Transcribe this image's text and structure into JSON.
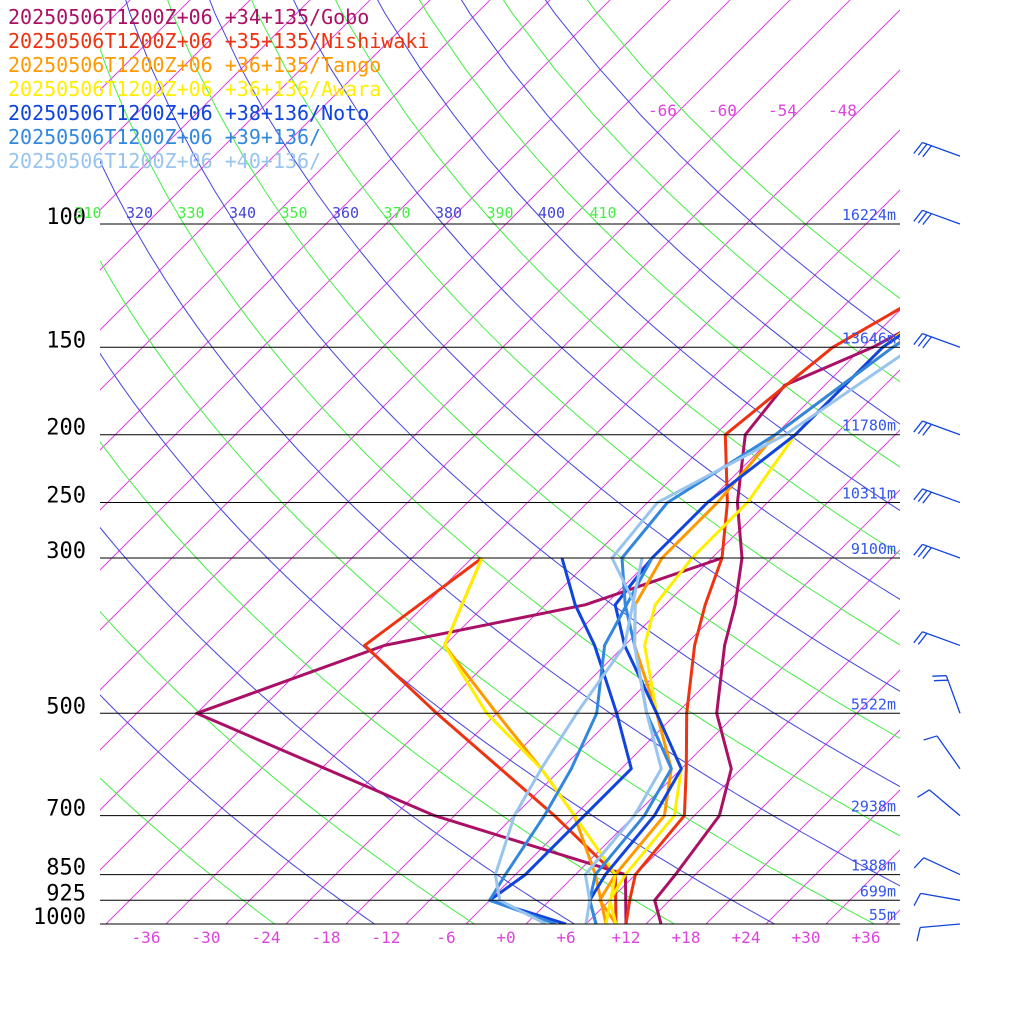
{
  "chart_data": {
    "type": "line",
    "title": "",
    "xlabel": "",
    "ylabel": "",
    "xlim": [
      -40,
      40
    ],
    "pressure_range": [
      100,
      1000
    ],
    "pressure_labels": [
      "100",
      "150",
      "200",
      "250",
      "300",
      "500",
      "700",
      "850",
      "925",
      "1000"
    ],
    "pressure_values": [
      100,
      150,
      200,
      250,
      300,
      500,
      700,
      850,
      925,
      1000
    ],
    "temperature_ticks": [
      "-36",
      "-30",
      "-24",
      "-18",
      "-12",
      "-6",
      "+0",
      "+6",
      "+12",
      "+18",
      "+24",
      "+30",
      "+36"
    ],
    "temperature_tick_values": [
      -36,
      -30,
      -24,
      -18,
      -12,
      -6,
      0,
      6,
      12,
      18,
      24,
      30,
      36
    ],
    "theta_labels": [
      "310",
      "320",
      "330",
      "340",
      "350",
      "360",
      "370",
      "380",
      "390",
      "400",
      "410"
    ],
    "mixing_ratio_labels": [
      "-66",
      "-60",
      "-54",
      "-48"
    ],
    "height_labels": [
      {
        "p": 100,
        "text": "16224m"
      },
      {
        "p": 150,
        "text": "13646m"
      },
      {
        "p": 200,
        "text": "11780m"
      },
      {
        "p": 250,
        "text": "10311m"
      },
      {
        "p": 300,
        "text": "9100m"
      },
      {
        "p": 500,
        "text": "5522m"
      },
      {
        "p": 700,
        "text": "2938m"
      },
      {
        "p": 850,
        "text": "1388m"
      },
      {
        "p": 925,
        "text": "699m"
      },
      {
        "p": 1000,
        "text": "55m"
      }
    ],
    "series": [
      {
        "name": "20250506T1200Z+06 +34+135/Gobo",
        "color": "#aa1166",
        "temperature": [
          [
            1000,
            15.5
          ],
          [
            925,
            12.5
          ],
          [
            850,
            12
          ],
          [
            700,
            10.5
          ],
          [
            600,
            7
          ],
          [
            500,
            0
          ],
          [
            400,
            -6
          ],
          [
            350,
            -9
          ],
          [
            300,
            -13
          ],
          [
            250,
            -19
          ],
          [
            200,
            -25
          ],
          [
            170,
            -26
          ],
          [
            150,
            -21
          ],
          [
            120,
            -15
          ],
          [
            100,
            -11
          ],
          [
            80,
            -11
          ]
        ],
        "dewpoint": [
          [
            1000,
            12
          ],
          [
            850,
            7
          ],
          [
            700,
            -18
          ],
          [
            500,
            -52
          ],
          [
            400,
            -40
          ],
          [
            350,
            -24
          ],
          [
            300,
            -15
          ]
        ]
      },
      {
        "name": "20250506T1200Z+06 +35+135/Nishiwaki",
        "color": "#ee3311",
        "temperature": [
          [
            1000,
            12
          ],
          [
            925,
            10
          ],
          [
            850,
            8
          ],
          [
            700,
            7
          ],
          [
            600,
            2.5
          ],
          [
            500,
            -3
          ],
          [
            400,
            -9
          ],
          [
            350,
            -12
          ],
          [
            300,
            -15
          ],
          [
            250,
            -20
          ],
          [
            200,
            -27
          ],
          [
            150,
            -25
          ],
          [
            120,
            -20
          ],
          [
            100,
            -16
          ],
          [
            80,
            -11
          ]
        ],
        "dewpoint": [
          [
            1000,
            11
          ],
          [
            850,
            6
          ],
          [
            700,
            -6
          ],
          [
            500,
            -28
          ],
          [
            400,
            -42
          ],
          [
            300,
            -39
          ]
        ]
      },
      {
        "name": "20250506T1200Z+06 +36+135/Tango",
        "color": "#ff9900",
        "temperature": [
          [
            1000,
            11
          ],
          [
            925,
            7
          ],
          [
            850,
            6
          ],
          [
            700,
            5
          ],
          [
            600,
            1
          ],
          [
            500,
            -6
          ],
          [
            400,
            -15
          ],
          [
            350,
            -19
          ],
          [
            300,
            -21
          ],
          [
            250,
            -21
          ],
          [
            200,
            -22
          ],
          [
            150,
            -19
          ],
          [
            120,
            -16
          ],
          [
            100,
            -14
          ],
          [
            80,
            -11
          ]
        ],
        "dewpoint": [
          [
            1000,
            10
          ],
          [
            850,
            4
          ],
          [
            700,
            -4
          ],
          [
            600,
            -12
          ],
          [
            500,
            -22
          ],
          [
            400,
            -34
          ],
          [
            300,
            -39
          ]
        ]
      },
      {
        "name": "20250506T1200Z+06 +36+136/Awara",
        "color": "#ffee00",
        "temperature": [
          [
            1000,
            11
          ],
          [
            925,
            8
          ],
          [
            850,
            7
          ],
          [
            700,
            6
          ],
          [
            600,
            2
          ],
          [
            500,
            -6
          ],
          [
            400,
            -14
          ],
          [
            350,
            -17
          ],
          [
            300,
            -18
          ],
          [
            250,
            -18
          ],
          [
            200,
            -20
          ],
          [
            150,
            -20
          ],
          [
            120,
            -18
          ],
          [
            100,
            -15
          ],
          [
            80,
            -12
          ]
        ],
        "dewpoint": [
          [
            1000,
            10
          ],
          [
            850,
            6
          ],
          [
            700,
            -4
          ],
          [
            600,
            -12
          ],
          [
            500,
            -23
          ],
          [
            400,
            -34
          ],
          [
            300,
            -39
          ]
        ]
      },
      {
        "name": "20250506T1200Z+06 +38+136/Noto",
        "color": "#1144dd",
        "temperature": [
          [
            1000,
            9
          ],
          [
            925,
            6
          ],
          [
            850,
            5
          ],
          [
            700,
            4
          ],
          [
            600,
            2
          ],
          [
            500,
            -6
          ],
          [
            400,
            -16
          ],
          [
            350,
            -21
          ],
          [
            300,
            -22
          ],
          [
            250,
            -22
          ],
          [
            200,
            -20
          ],
          [
            150,
            -20
          ],
          [
            120,
            -17
          ],
          [
            100,
            -14
          ],
          [
            80,
            -12
          ]
        ],
        "dewpoint": [
          [
            1000,
            6
          ],
          [
            925,
            -4
          ],
          [
            850,
            -3
          ],
          [
            700,
            -3
          ],
          [
            600,
            -3
          ],
          [
            500,
            -10
          ],
          [
            400,
            -19
          ],
          [
            350,
            -25
          ],
          [
            300,
            -31
          ]
        ]
      },
      {
        "name": "20250506T1200Z+06 +39+136/",
        "color": "#3388dd",
        "temperature": [
          [
            1000,
            9
          ],
          [
            925,
            6
          ],
          [
            850,
            4
          ],
          [
            700,
            3
          ],
          [
            600,
            1
          ],
          [
            500,
            -7
          ],
          [
            400,
            -15
          ],
          [
            350,
            -20
          ],
          [
            300,
            -25
          ],
          [
            250,
            -26
          ],
          [
            200,
            -22
          ],
          [
            150,
            -19
          ],
          [
            120,
            -15
          ],
          [
            100,
            -13
          ],
          [
            80,
            -12
          ]
        ],
        "dewpoint": [
          [
            1000,
            5
          ],
          [
            925,
            -4
          ],
          [
            850,
            -5
          ],
          [
            700,
            -7
          ],
          [
            600,
            -9
          ],
          [
            500,
            -12
          ],
          [
            400,
            -18
          ],
          [
            300,
            -22
          ]
        ]
      },
      {
        "name": "20250506T1200Z+06 +40+136/",
        "color": "#99c4ee",
        "temperature": [
          [
            1000,
            8
          ],
          [
            925,
            6
          ],
          [
            850,
            3
          ],
          [
            700,
            2
          ],
          [
            600,
            0
          ],
          [
            500,
            -7
          ],
          [
            400,
            -15
          ],
          [
            350,
            -19
          ],
          [
            300,
            -26
          ],
          [
            250,
            -27
          ],
          [
            200,
            -21
          ],
          [
            150,
            -17
          ],
          [
            120,
            -13
          ],
          [
            100,
            -11
          ],
          [
            80,
            -9
          ]
        ],
        "dewpoint": [
          [
            1000,
            4
          ],
          [
            925,
            -3
          ],
          [
            850,
            -6
          ],
          [
            700,
            -10
          ],
          [
            600,
            -12
          ],
          [
            500,
            -14
          ],
          [
            400,
            -16
          ],
          [
            300,
            -23
          ]
        ]
      }
    ],
    "wind_barbs_pressure": [
      80,
      100,
      150,
      200,
      250,
      300,
      400,
      500,
      600,
      700,
      850,
      925,
      1000
    ]
  }
}
